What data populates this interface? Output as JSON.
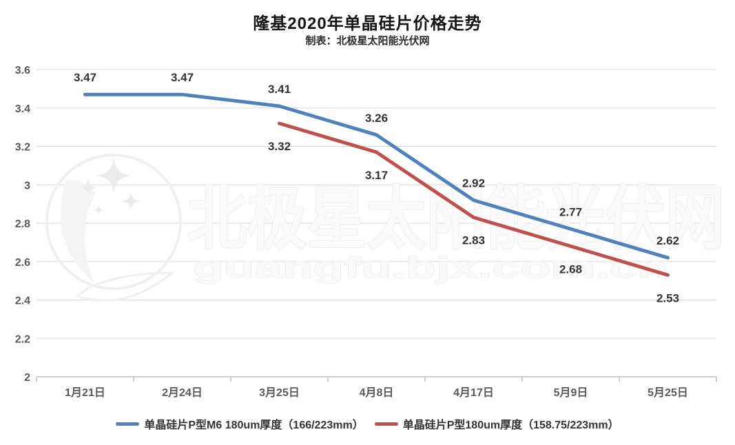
{
  "header": {
    "title": "隆基2020年单晶硅片价格走势",
    "subtitle": "制表：北极星太阳能光伏网"
  },
  "watermark": {
    "logo": "polaris-star-moon-logo",
    "text_cn": "北极星太阳能光伏网",
    "text_url": "guangfu.bjx.com.cn"
  },
  "chart_data": {
    "type": "line",
    "title": "隆基2020年单晶硅片价格走势",
    "subtitle": "制表：北极星太阳能光伏网",
    "categories": [
      "1月21日",
      "2月24日",
      "3月25日",
      "4月8日",
      "4月17日",
      "5月9日",
      "5月25日"
    ],
    "series": [
      {
        "name": "单晶硅片P型M6 180um厚度（166/223mm）",
        "color": "#4f81bd",
        "values": [
          3.47,
          3.47,
          3.41,
          3.26,
          2.92,
          2.77,
          2.62
        ],
        "label_position": "above"
      },
      {
        "name": "单晶硅片P型180um厚度（158.75/223mm）",
        "color": "#c0504d",
        "values": [
          null,
          null,
          3.32,
          3.17,
          2.83,
          2.68,
          2.53
        ],
        "label_position": "below"
      }
    ],
    "ylim": [
      2,
      3.6
    ],
    "ytick_step": 0.2,
    "ytick_labels": [
      "2",
      "2.2",
      "2.4",
      "2.6",
      "2.8",
      "3",
      "3.2",
      "3.4",
      "3.6"
    ],
    "grid": true,
    "legend_position": "bottom",
    "colors": {
      "gridline": "#d9d9d9",
      "axis": "#bfbfbf",
      "tick_label": "#595959",
      "data_label": "#333333"
    }
  }
}
